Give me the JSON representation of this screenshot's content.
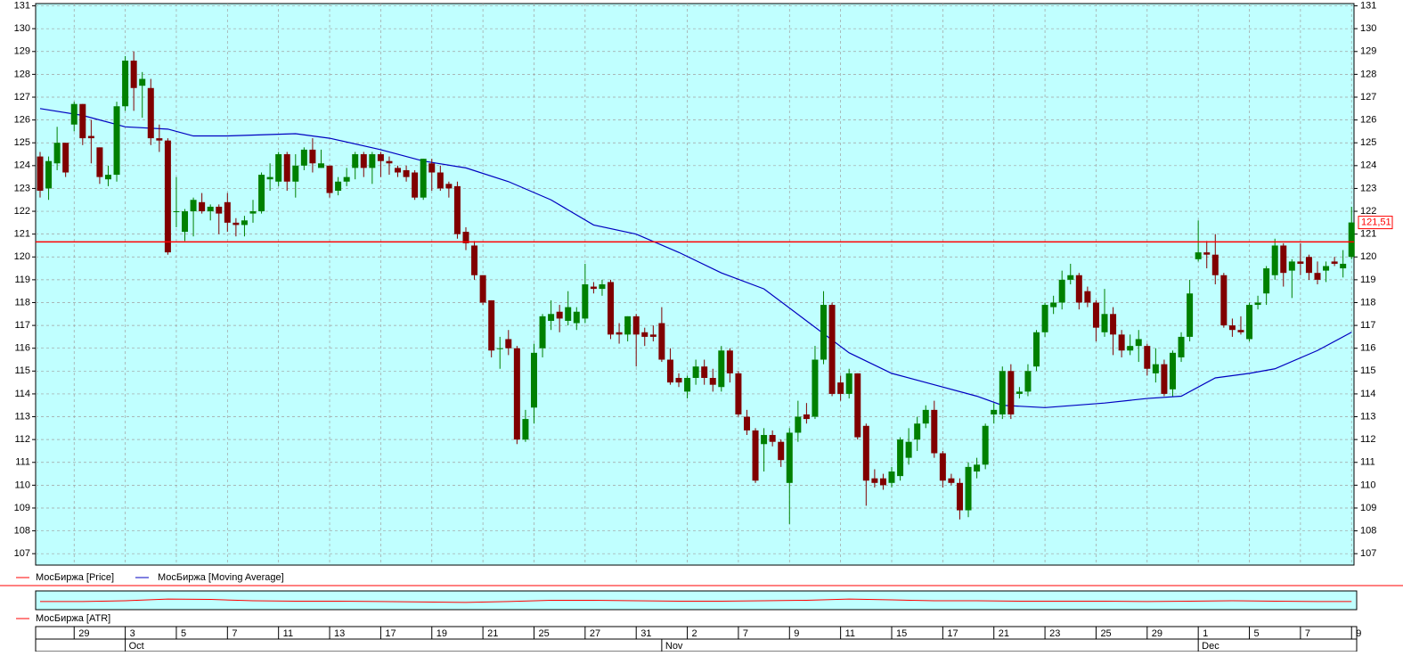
{
  "chart_data": {
    "type": "candlestick",
    "price_name": "МосБиржа [Price]",
    "price_color": "#ff0000",
    "up_color": "#008000",
    "down_color": "#800000",
    "open": [
      124.4,
      123,
      124.1,
      125,
      125.8,
      126.7,
      125.3,
      124.8,
      123.4,
      123.6,
      126.6,
      128.6,
      127.5,
      127.4,
      125.2,
      125.1,
      122,
      121.1,
      122,
      122.4,
      122,
      122.2,
      122.4,
      121.5,
      121.4,
      121.9,
      122,
      123.4,
      123.3,
      124.5,
      123.3,
      124,
      124.7,
      123.9,
      124,
      122.9,
      123.3,
      123.9,
      124.5,
      123.9,
      124.5,
      124.2,
      123.9,
      123.8,
      123.7,
      122.6,
      124.1,
      123.7,
      123.2,
      123.1,
      121.1,
      120.5,
      119.2,
      118.1,
      116,
      116.4,
      116,
      112,
      113.4,
      116,
      117.2,
      117.6,
      117.2,
      117.1,
      117.3,
      118.7,
      118.6,
      118.9,
      116.7,
      116.6,
      117.4,
      116.7,
      116.6,
      117.1,
      115.5,
      114.7,
      114.1,
      114.7,
      115.2,
      114.7,
      114.3,
      115.9,
      114.9,
      113,
      112.4,
      111.8,
      112.2,
      111.9,
      110.1,
      112.3,
      113.1,
      113,
      115.5,
      117.9,
      114.5,
      114,
      114.9,
      112.6,
      110.3,
      110.3,
      110.1,
      110.4,
      111.2,
      112,
      112.7,
      113.3,
      111.4,
      110.3,
      110.1,
      108.9,
      110.6,
      110.9,
      113.1,
      113.1,
      115,
      114,
      114.1,
      115.2,
      116.7,
      117.8,
      118,
      119,
      119.2,
      118.5,
      118,
      116.7,
      117.5,
      116.6,
      115.9,
      116.1,
      116.1,
      114.9,
      115.3,
      114.2,
      115.6,
      116.5,
      119.9,
      120.2,
      120.1,
      119.2,
      117,
      116.8,
      116.4,
      117.9,
      118.4,
      119.2,
      120.5,
      119.4,
      119.8,
      120,
      119.3,
      119.4,
      119.8,
      119.5,
      120
    ],
    "high": [
      124.6,
      124.4,
      125.7,
      125,
      126.8,
      126.7,
      126,
      124.8,
      124,
      126.8,
      128.8,
      129,
      128.1,
      127.8,
      125.8,
      125.2,
      123.5,
      122.1,
      122.6,
      122.8,
      122.3,
      122.3,
      122.8,
      121.7,
      121.8,
      122.5,
      123.7,
      124.1,
      124.6,
      124.6,
      124.5,
      124.8,
      125.2,
      124.7,
      124,
      123.5,
      123.9,
      124.6,
      124.6,
      124.6,
      124.6,
      124.4,
      124,
      124,
      123.8,
      124.3,
      124.3,
      124,
      123.3,
      123.3,
      121.3,
      120.7,
      119.2,
      118.1,
      116.5,
      116.8,
      116.1,
      113.3,
      116.2,
      117.5,
      118.1,
      117.9,
      118.5,
      117.8,
      119.7,
      118.9,
      119,
      119,
      117.1,
      117.4,
      117.5,
      116.9,
      117,
      117.8,
      116,
      114.9,
      114.8,
      115.5,
      115.5,
      115.1,
      116.1,
      116,
      115,
      113.3,
      112.5,
      112.5,
      112.4,
      112,
      112.5,
      113.7,
      113.6,
      116.1,
      118.5,
      118,
      114.8,
      115.1,
      114.9,
      112.7,
      110.7,
      110.5,
      110.8,
      112.1,
      112.5,
      113,
      113.5,
      113.7,
      111.5,
      110.5,
      110.3,
      111,
      111.2,
      112.7,
      113.6,
      115.2,
      115.3,
      114.3,
      115.3,
      116.8,
      118,
      118.3,
      119.4,
      119.7,
      119.3,
      118.7,
      118.1,
      118.6,
      117.8,
      116.8,
      116.6,
      116.8,
      116.2,
      116,
      115.5,
      115.9,
      116.7,
      119,
      121.6,
      120.7,
      121,
      119.3,
      117.3,
      117.4,
      118,
      118.3,
      119.6,
      120.8,
      120.6,
      119.9,
      120.6,
      120.1,
      119.8,
      119.8,
      120,
      120.3,
      122.2
    ],
    "low": [
      122.6,
      122.5,
      123.8,
      123.5,
      125.5,
      124.9,
      124.1,
      123.2,
      123.1,
      123.3,
      126.4,
      126.4,
      126.1,
      124.9,
      124.6,
      120.1,
      121.3,
      120.7,
      120.9,
      121.9,
      121.6,
      121,
      121.1,
      120.9,
      120.9,
      121.5,
      121.9,
      122.9,
      123.1,
      122.9,
      122.6,
      123.8,
      123.7,
      123.9,
      122.6,
      122.7,
      123.1,
      123.4,
      123.5,
      123.2,
      123.5,
      123.6,
      123.5,
      123.3,
      122.5,
      122.5,
      122.9,
      122.9,
      122.6,
      120.8,
      120.3,
      119,
      117.9,
      115.6,
      115.1,
      115.7,
      111.8,
      111.9,
      112.7,
      115.6,
      116.8,
      116.7,
      117,
      116.8,
      117.1,
      118.4,
      118.3,
      116.4,
      116.2,
      116.3,
      115.2,
      116.1,
      116.3,
      115.4,
      114.4,
      114.3,
      113.8,
      114.4,
      114.4,
      114.1,
      114.1,
      114.5,
      113,
      112.2,
      110.1,
      110.6,
      111.7,
      110.8,
      108.3,
      111.9,
      112.7,
      112.9,
      115.3,
      113.9,
      113.7,
      113.8,
      112,
      109.1,
      109.9,
      109.8,
      109.9,
      110.2,
      110.9,
      111.5,
      112.5,
      111.2,
      109.9,
      110,
      108.5,
      108.6,
      110.3,
      110.7,
      112.7,
      112.9,
      112.9,
      113.8,
      113.9,
      115,
      116.5,
      117.5,
      117.7,
      118.8,
      117.7,
      117.8,
      116.3,
      116.5,
      115.7,
      115.6,
      115.7,
      115.4,
      114.8,
      114.5,
      113.9,
      113.9,
      115.4,
      116.3,
      119.8,
      119.5,
      118.8,
      116.9,
      116.5,
      116.6,
      116.3,
      117.7,
      117.9,
      119,
      118.7,
      118.2,
      119.2,
      119,
      118.8,
      118.9,
      119.6,
      119.1,
      119.9
    ],
    "close": [
      122.9,
      124.2,
      125,
      123.7,
      126.7,
      125.2,
      125.2,
      123.5,
      123.6,
      126.6,
      128.6,
      127.4,
      127.8,
      125.2,
      125.1,
      120.2,
      122,
      122,
      122.5,
      122,
      122.2,
      121.9,
      121.5,
      121.4,
      121.6,
      122,
      123.6,
      123.5,
      124.5,
      123.3,
      124,
      124.7,
      124.1,
      124.1,
      122.8,
      123.3,
      123.5,
      124.5,
      123.9,
      124.5,
      124.2,
      124.1,
      123.7,
      123.5,
      122.6,
      124.3,
      123.7,
      123,
      123,
      121,
      120.6,
      119.2,
      118,
      115.9,
      116,
      116,
      112,
      112.9,
      115.8,
      117.4,
      117.5,
      117.3,
      117.8,
      117.6,
      118.8,
      118.6,
      118.8,
      116.6,
      116.6,
      117.4,
      116.6,
      116.5,
      116.5,
      115.5,
      114.5,
      114.5,
      114.7,
      115.2,
      114.7,
      114.4,
      115.9,
      114.9,
      113.1,
      112.4,
      110.2,
      112.2,
      111.9,
      111.1,
      112.3,
      113,
      112.9,
      115.5,
      117.9,
      114,
      114,
      114.9,
      112.1,
      110.2,
      110.1,
      110,
      110.6,
      112,
      111.9,
      112.7,
      113.3,
      111.4,
      110.2,
      110.1,
      108.9,
      110.8,
      110.9,
      112.6,
      113.3,
      115,
      113.1,
      114.1,
      115,
      116.7,
      117.9,
      118,
      119,
      119.2,
      118,
      118,
      116.9,
      117.5,
      116.6,
      115.9,
      116.1,
      116.4,
      115.1,
      115.3,
      114,
      115.8,
      116.5,
      118.4,
      120.2,
      120.1,
      119.2,
      117,
      116.8,
      116.7,
      117.9,
      118,
      119.5,
      120.5,
      119.3,
      119.8,
      119.7,
      119.3,
      119,
      119.6,
      119.7,
      119.7,
      121.51
    ],
    "moving_average": {
      "name": "МосБиржа [Moving Average]",
      "color": "#0000c0",
      "x": [
        0,
        5,
        10,
        15,
        18,
        22,
        30,
        34,
        40,
        45,
        50,
        55,
        60,
        65,
        70,
        75,
        80,
        85,
        90,
        95,
        100,
        105,
        110,
        113,
        118,
        125,
        130,
        134,
        138,
        142,
        145,
        150,
        154
      ],
      "values": [
        126.5,
        126.2,
        125.7,
        125.6,
        125.3,
        125.3,
        125.4,
        125.2,
        124.7,
        124.2,
        123.9,
        123.3,
        122.5,
        121.4,
        121,
        120.2,
        119.3,
        118.6,
        117.2,
        115.8,
        114.9,
        114.4,
        113.9,
        113.5,
        113.4,
        113.6,
        113.8,
        113.9,
        114.7,
        114.9,
        115.1,
        115.9,
        116.7
      ]
    },
    "hline": {
      "value": 120.66,
      "color": "#ff0000"
    },
    "last_price": {
      "value": 121.51,
      "label": "121,51"
    },
    "ylim": [
      106.5,
      131.1
    ],
    "yticks": [
      107,
      108,
      109,
      110,
      111,
      112,
      113,
      114,
      115,
      116,
      117,
      118,
      119,
      120,
      121,
      122,
      123,
      124,
      125,
      126,
      127,
      128,
      129,
      130,
      131
    ],
    "grid": true,
    "xlim": [
      -0.5,
      155
    ],
    "xticks": [
      {
        "value": 4,
        "label": "29"
      },
      {
        "value": 10,
        "label": "3"
      },
      {
        "value": 16,
        "label": "5"
      },
      {
        "value": 22,
        "label": "7"
      },
      {
        "value": 28,
        "label": "11"
      },
      {
        "value": 34,
        "label": "13"
      },
      {
        "value": 40,
        "label": "17"
      },
      {
        "value": 46,
        "label": "19"
      },
      {
        "value": 52,
        "label": "21"
      },
      {
        "value": 58,
        "label": "25"
      },
      {
        "value": 64,
        "label": "27"
      },
      {
        "value": 70,
        "label": "31"
      },
      {
        "value": 76,
        "label": "2"
      },
      {
        "value": 82,
        "label": "7"
      },
      {
        "value": 88,
        "label": "9"
      },
      {
        "value": 94,
        "label": "11"
      },
      {
        "value": 100,
        "label": "15"
      },
      {
        "value": 106,
        "label": "17"
      },
      {
        "value": 112,
        "label": "21"
      },
      {
        "value": 118,
        "label": "23"
      },
      {
        "value": 124,
        "label": "25"
      },
      {
        "value": 130,
        "label": "29"
      },
      {
        "value": 136,
        "label": "1"
      },
      {
        "value": 142,
        "label": "5"
      },
      {
        "value": 148,
        "label": "7"
      },
      {
        "value": 154,
        "label": "9"
      }
    ],
    "month_ticks": [
      {
        "value": 10,
        "label": "Oct"
      },
      {
        "value": 73,
        "label": "Nov"
      },
      {
        "value": 136,
        "label": "Dec"
      }
    ],
    "atr": {
      "name": "МосБиржа [ATR]",
      "color": "#ff0000",
      "ylim": [
        0,
        4
      ],
      "x": [
        0,
        5,
        10,
        15,
        20,
        25,
        30,
        35,
        40,
        45,
        50,
        55,
        60,
        65,
        70,
        75,
        80,
        85,
        90,
        95,
        100,
        105,
        110,
        115,
        120,
        125,
        130,
        135,
        140,
        145,
        150,
        154
      ],
      "values": [
        1.7,
        1.7,
        1.9,
        2.3,
        2.2,
        1.9,
        1.8,
        1.8,
        1.7,
        1.6,
        1.5,
        1.7,
        2.0,
        2.0,
        1.9,
        1.8,
        1.8,
        1.9,
        2.0,
        2.3,
        2.1,
        1.9,
        1.9,
        1.8,
        1.8,
        1.8,
        1.7,
        1.8,
        1.9,
        1.8,
        1.7,
        1.7
      ]
    }
  }
}
